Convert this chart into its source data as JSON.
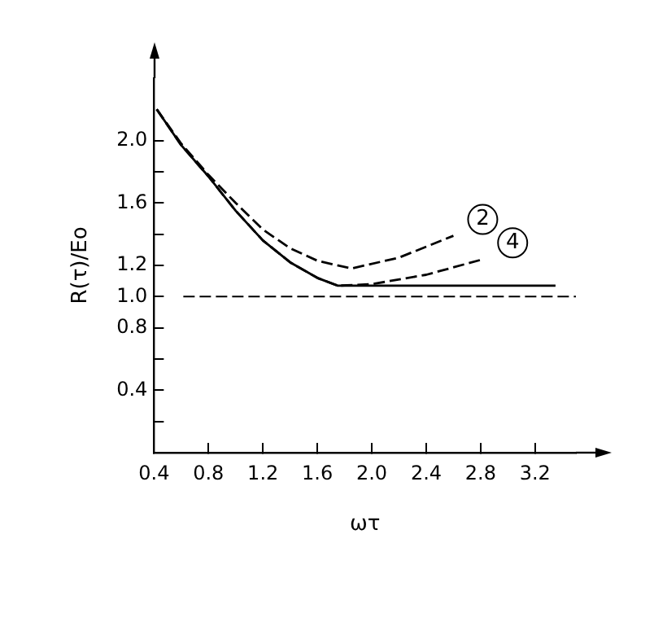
{
  "chart_data": {
    "type": "line",
    "xlabel": "ωτ",
    "ylabel": "R(τ)/Eo",
    "xlim": [
      0.4,
      3.5
    ],
    "ylim": [
      0,
      2.4
    ],
    "xticks": [
      0.4,
      0.8,
      1.2,
      1.6,
      {
        "value": 2,
        "label": "2.0"
      },
      2.4,
      2.8,
      3.2
    ],
    "yticks": [
      {
        "value": 0.2,
        "label": null
      },
      0.4,
      {
        "value": 0.6,
        "label": null
      },
      0.8,
      {
        "value": 1,
        "label": "1.0"
      },
      1.2,
      {
        "value": 1.4,
        "label": null
      },
      1.6,
      {
        "value": 1.8,
        "label": null
      },
      {
        "value": 2,
        "label": "2.0"
      }
    ],
    "grid": false,
    "legend": false,
    "marker": "none",
    "series": [
      {
        "color": "#000000",
        "line_style": "solid",
        "x": [
          0.42,
          0.6,
          0.8,
          1.0,
          1.2,
          1.4,
          1.6,
          1.75,
          2.0,
          2.5,
          3.0,
          3.35
        ],
        "values": [
          2.2,
          1.97,
          1.77,
          1.55,
          1.36,
          1.22,
          1.12,
          1.07,
          1.07,
          1.07,
          1.07,
          1.07
        ]
      },
      {
        "name": "2",
        "color": "#000000",
        "line_style": "dashed",
        "x": [
          0.42,
          0.6,
          0.8,
          1.0,
          1.2,
          1.4,
          1.6,
          1.85,
          2.2,
          2.6
        ],
        "values": [
          2.2,
          1.98,
          1.78,
          1.6,
          1.43,
          1.31,
          1.23,
          1.18,
          1.25,
          1.39
        ]
      },
      {
        "name": "4",
        "color": "#000000",
        "line_style": "dashed",
        "x": [
          0.42,
          0.6,
          0.8,
          1.0,
          1.2,
          1.4,
          1.6,
          1.75,
          2.0,
          2.4,
          2.82
        ],
        "values": [
          2.2,
          1.97,
          1.77,
          1.55,
          1.36,
          1.22,
          1.12,
          1.07,
          1.08,
          1.14,
          1.24
        ]
      }
    ],
    "ref_lines": [
      {
        "axis": "y",
        "value": 1.0,
        "line_style": "dashed",
        "color": "#000000"
      }
    ]
  }
}
